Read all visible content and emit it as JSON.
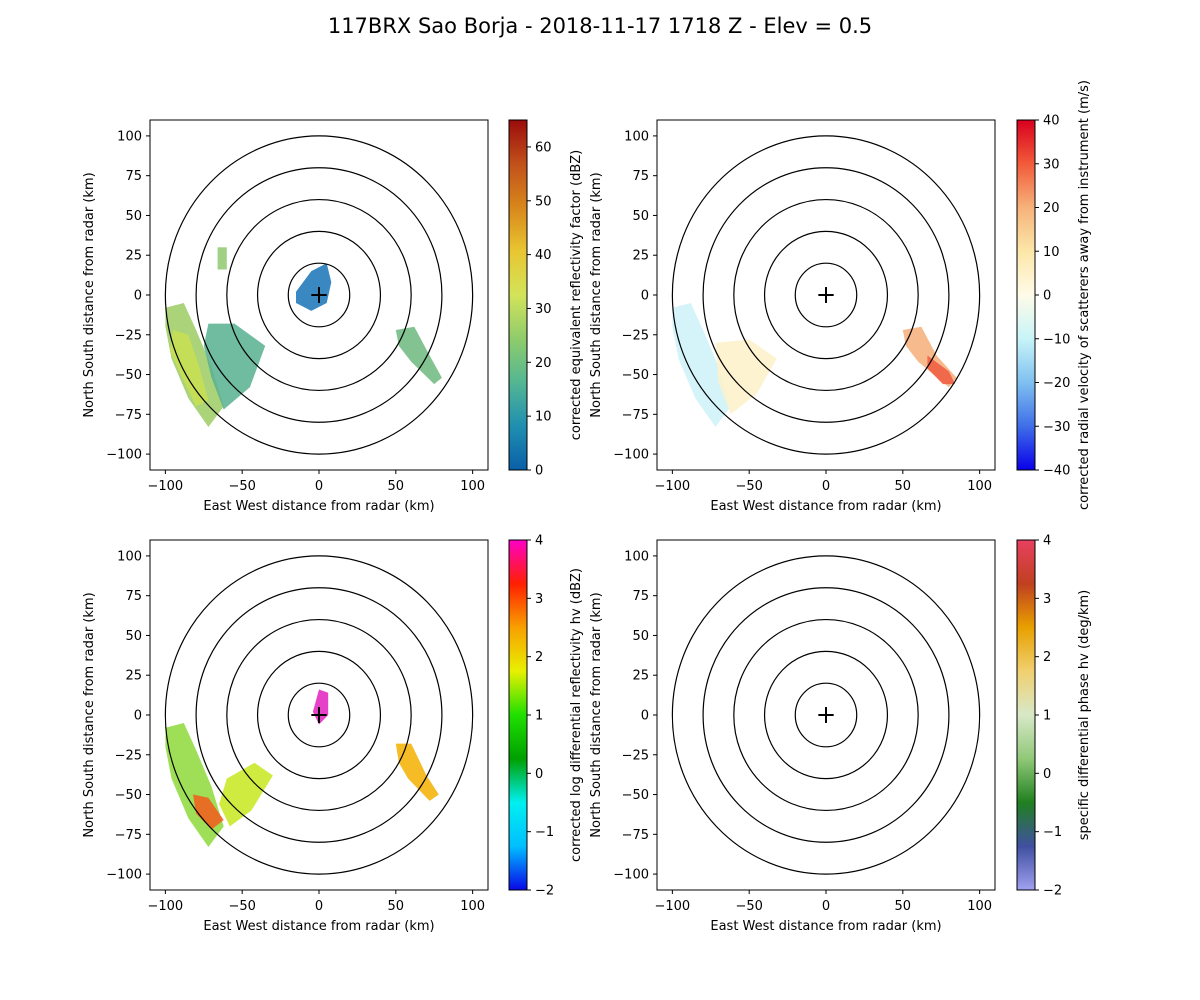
{
  "figure": {
    "title": "117BRX Sao Borja - 2018-11-17 1718 Z -  Elev = 0.5"
  },
  "chart_data": [
    {
      "type": "ppi",
      "panel": "top-left",
      "xlabel": "East West distance from radar (km)",
      "ylabel": "North South distance from radar (km)",
      "xlim": [
        -110,
        110
      ],
      "ylim": [
        -110,
        110
      ],
      "xticks": [
        -100,
        -50,
        0,
        50,
        100
      ],
      "yticks": [
        -100,
        -75,
        -50,
        -25,
        0,
        25,
        50,
        75,
        100
      ],
      "range_rings_km": [
        20,
        40,
        60,
        80,
        100
      ],
      "colorbar": {
        "label": "corrected equivalent reflectivity factor (dBZ)",
        "min": 0,
        "max": 65,
        "ticks": [
          0,
          10,
          20,
          30,
          40,
          50,
          60
        ],
        "colors": [
          "#0a5fa8",
          "#1f8fb0",
          "#53b693",
          "#8fcc6b",
          "#d3e35a",
          "#e8c631",
          "#d8871b",
          "#c1511b",
          "#9b0b0b"
        ]
      },
      "echo_regions": [
        {
          "name": "southwest-rain-band",
          "color": "#9ccb62",
          "points": [
            [
              -100,
              -8
            ],
            [
              -88,
              -5
            ],
            [
              -80,
              -22
            ],
            [
              -70,
              -45
            ],
            [
              -62,
              -70
            ],
            [
              -72,
              -83
            ],
            [
              -85,
              -65
            ],
            [
              -96,
              -40
            ],
            [
              -100,
              -20
            ]
          ]
        },
        {
          "name": "southwest-core",
          "color": "#c8df52",
          "points": [
            [
              -95,
              -22
            ],
            [
              -85,
              -25
            ],
            [
              -78,
              -45
            ],
            [
              -72,
              -66
            ],
            [
              -80,
              -70
            ],
            [
              -90,
              -50
            ],
            [
              -97,
              -35
            ]
          ]
        },
        {
          "name": "south-band",
          "color": "#57b091",
          "points": [
            [
              -72,
              -18
            ],
            [
              -55,
              -18
            ],
            [
              -35,
              -32
            ],
            [
              -45,
              -58
            ],
            [
              -62,
              -72
            ],
            [
              -70,
              -52
            ],
            [
              -75,
              -32
            ]
          ]
        },
        {
          "name": "east-cluster",
          "color": "#6db87f",
          "points": [
            [
              50,
              -22
            ],
            [
              62,
              -20
            ],
            [
              72,
              -38
            ],
            [
              80,
              -52
            ],
            [
              75,
              -56
            ],
            [
              60,
              -42
            ],
            [
              52,
              -32
            ]
          ]
        },
        {
          "name": "near-radar-clutter",
          "color": "#1773b6",
          "points": [
            [
              -15,
              2
            ],
            [
              -5,
              15
            ],
            [
              5,
              20
            ],
            [
              8,
              8
            ],
            [
              5,
              -5
            ],
            [
              -5,
              -10
            ],
            [
              -15,
              -5
            ]
          ]
        },
        {
          "name": "north-specks",
          "color": "#8ec86d",
          "points": [
            [
              -66,
              30
            ],
            [
              -60,
              30
            ],
            [
              -60,
              16
            ],
            [
              -66,
              16
            ]
          ]
        }
      ]
    },
    {
      "type": "ppi",
      "panel": "top-right",
      "xlabel": "East West distance from radar (km)",
      "ylabel": "North South distance from radar (km)",
      "xlim": [
        -110,
        110
      ],
      "ylim": [
        -110,
        110
      ],
      "xticks": [
        -100,
        -50,
        0,
        50,
        100
      ],
      "yticks": [
        -100,
        -75,
        -50,
        -25,
        0,
        25,
        50,
        75,
        100
      ],
      "range_rings_km": [
        20,
        40,
        60,
        80,
        100
      ],
      "colorbar": {
        "label": "corrected radial velocity of scatterers away from instrument (m/s)",
        "min": -40,
        "max": 40,
        "ticks": [
          -40,
          -30,
          -20,
          -10,
          0,
          10,
          20,
          30,
          40
        ],
        "colors": [
          "#0a00e8",
          "#3f6ee8",
          "#7fc0f0",
          "#c8f4f8",
          "#fffbe8",
          "#fce7a8",
          "#f6b27a",
          "#f25a3a",
          "#d8001e"
        ]
      },
      "echo_regions": [
        {
          "name": "southwest-inbound",
          "color": "#cdf2f9",
          "points": [
            [
              -100,
              -8
            ],
            [
              -88,
              -5
            ],
            [
              -80,
              -22
            ],
            [
              -70,
              -45
            ],
            [
              -62,
              -70
            ],
            [
              -72,
              -83
            ],
            [
              -85,
              -65
            ],
            [
              -96,
              -40
            ],
            [
              -100,
              -20
            ]
          ]
        },
        {
          "name": "south-outbound",
          "color": "#fdf1c8",
          "points": [
            [
              -72,
              -30
            ],
            [
              -50,
              -28
            ],
            [
              -32,
              -40
            ],
            [
              -45,
              -62
            ],
            [
              -62,
              -75
            ],
            [
              -70,
              -55
            ]
          ]
        },
        {
          "name": "east-outbound",
          "color": "#f5ae79",
          "points": [
            [
              50,
              -22
            ],
            [
              62,
              -20
            ],
            [
              72,
              -38
            ],
            [
              85,
              -52
            ],
            [
              80,
              -58
            ],
            [
              60,
              -42
            ],
            [
              52,
              -32
            ]
          ]
        },
        {
          "name": "east-strong",
          "color": "#ee5b3e",
          "points": [
            [
              66,
              -38
            ],
            [
              80,
              -48
            ],
            [
              84,
              -56
            ],
            [
              76,
              -56
            ],
            [
              66,
              -46
            ]
          ]
        }
      ]
    },
    {
      "type": "ppi",
      "panel": "bottom-left",
      "xlabel": "East West distance from radar (km)",
      "ylabel": "North South distance from radar (km)",
      "xlim": [
        -110,
        110
      ],
      "ylim": [
        -110,
        110
      ],
      "xticks": [
        -100,
        -50,
        0,
        50,
        100
      ],
      "yticks": [
        -100,
        -75,
        -50,
        -25,
        0,
        25,
        50,
        75,
        100
      ],
      "range_rings_km": [
        20,
        40,
        60,
        80,
        100
      ],
      "colorbar": {
        "label": "corrected log differential reflectivity hv (dBZ)",
        "min": -2,
        "max": 4,
        "ticks": [
          -2,
          -1,
          0,
          1,
          2,
          3,
          4
        ],
        "colors": [
          "#0a08e8",
          "#00bfff",
          "#00f0f0",
          "#00a000",
          "#20e000",
          "#e8f000",
          "#f8a000",
          "#ff2000",
          "#ff00c8"
        ]
      },
      "echo_regions": [
        {
          "name": "southwest-band",
          "color": "#8ed93a",
          "points": [
            [
              -100,
              -8
            ],
            [
              -88,
              -5
            ],
            [
              -80,
              -22
            ],
            [
              -70,
              -45
            ],
            [
              -62,
              -70
            ],
            [
              -72,
              -83
            ],
            [
              -85,
              -65
            ],
            [
              -96,
              -40
            ],
            [
              -100,
              -20
            ]
          ]
        },
        {
          "name": "southwest-hot",
          "color": "#f25a1c",
          "points": [
            [
              -82,
              -50
            ],
            [
              -72,
              -52
            ],
            [
              -62,
              -66
            ],
            [
              -70,
              -72
            ],
            [
              -80,
              -62
            ]
          ]
        },
        {
          "name": "south-band",
          "color": "#c7e81f",
          "points": [
            [
              -60,
              -40
            ],
            [
              -42,
              -30
            ],
            [
              -30,
              -38
            ],
            [
              -44,
              -60
            ],
            [
              -58,
              -70
            ],
            [
              -65,
              -56
            ]
          ]
        },
        {
          "name": "east-cluster",
          "color": "#f5b000",
          "points": [
            [
              50,
              -18
            ],
            [
              60,
              -18
            ],
            [
              70,
              -38
            ],
            [
              78,
              -50
            ],
            [
              72,
              -54
            ],
            [
              58,
              -40
            ],
            [
              52,
              -30
            ]
          ]
        },
        {
          "name": "near-radar",
          "color": "#e020c0",
          "points": [
            [
              -4,
              2
            ],
            [
              0,
              16
            ],
            [
              6,
              14
            ],
            [
              6,
              0
            ],
            [
              0,
              -6
            ]
          ]
        }
      ]
    },
    {
      "type": "ppi",
      "panel": "bottom-right",
      "xlabel": "East West distance from radar (km)",
      "ylabel": "North South distance from radar (km)",
      "xlim": [
        -110,
        110
      ],
      "ylim": [
        -110,
        110
      ],
      "xticks": [
        -100,
        -50,
        0,
        50,
        100
      ],
      "yticks": [
        -100,
        -75,
        -50,
        -25,
        0,
        25,
        50,
        75,
        100
      ],
      "range_rings_km": [
        20,
        40,
        60,
        80,
        100
      ],
      "colorbar": {
        "label": "specific differential phase hv (deg/km)",
        "min": -2,
        "max": 4,
        "ticks": [
          -2,
          -1,
          0,
          1,
          2,
          3,
          4
        ],
        "colors": [
          "#a0a0f0",
          "#4050a0",
          "#208020",
          "#90c878",
          "#d8e8c8",
          "#f0d070",
          "#e8a000",
          "#c04020",
          "#e84060"
        ]
      },
      "echo_regions": []
    }
  ]
}
